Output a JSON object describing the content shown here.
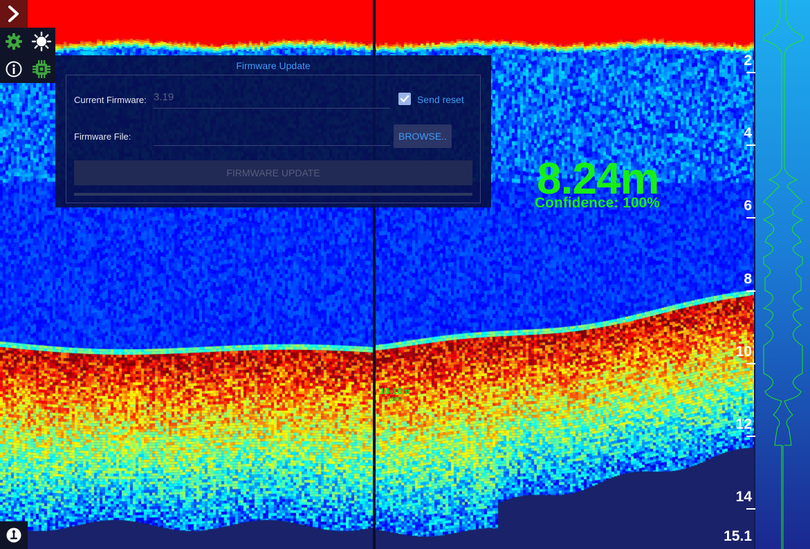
{
  "firmware_panel": {
    "title": "Firmware Update",
    "current_firmware_label": "Current Firmware:",
    "current_firmware_value": "3.19",
    "send_reset_label": "Send reset",
    "send_reset_checked": true,
    "firmware_file_label": "Firmware File:",
    "firmware_file_value": "",
    "browse_label": "BROWSE..",
    "update_label": "FIRMWARE UPDATE",
    "progress": 0.0
  },
  "readout": {
    "distance": "8.24m",
    "confidence": "Confidence: 100%"
  },
  "cursor_readout": {
    "distance": "10.10m",
    "confidence": "100%"
  },
  "depth_axis": {
    "ticks": [
      "2",
      "4",
      "6",
      "8",
      "10",
      "12",
      "14"
    ],
    "max_label": "15.1",
    "max_depth": 15.1
  },
  "depth_marker_value": 8.24,
  "toolbar": {
    "icons": [
      "chevron-right-icon",
      "gear-icon",
      "sun-icon",
      "info-icon",
      "chip-icon",
      "joystick-icon"
    ]
  },
  "colors": {
    "readout_green": "#17ee17",
    "accent_blue": "#3f9bf5",
    "expand_button_red": "#6b1212",
    "marker_red": "#e01010",
    "water_blue": "#1330ea",
    "surface_red": "#ff0000"
  }
}
